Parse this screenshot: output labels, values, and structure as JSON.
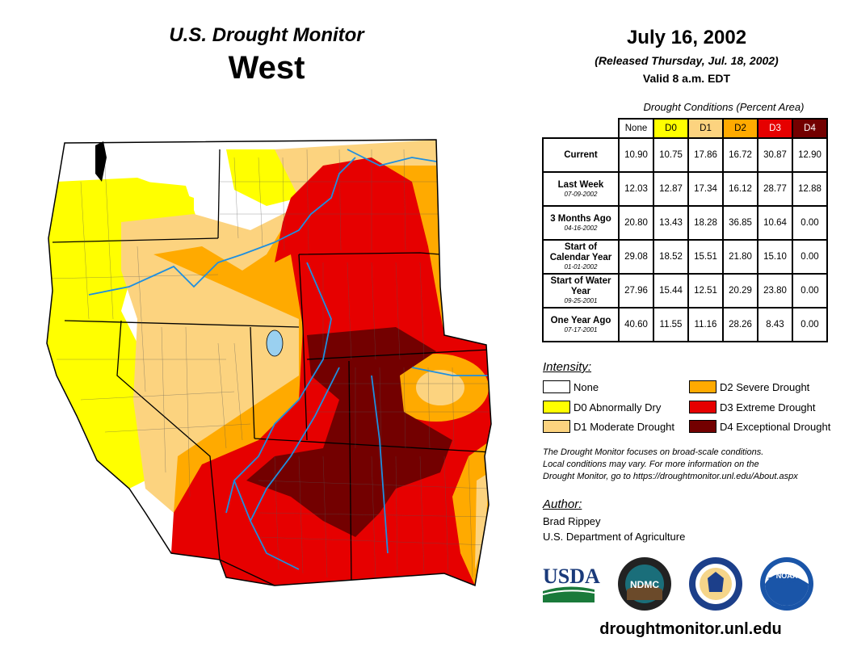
{
  "header": {
    "title": "U.S. Drought Monitor",
    "region": "West",
    "date": "July 16, 2002",
    "released": "(Released Thursday, Jul. 18, 2002)",
    "valid": "Valid 8 a.m. EDT"
  },
  "table": {
    "caption": "Drought Conditions (Percent Area)",
    "columns": [
      "None",
      "D0",
      "D1",
      "D2",
      "D3",
      "D4"
    ],
    "column_colors": [
      "#ffffff",
      "#ffff00",
      "#fcd37f",
      "#ffaa00",
      "#e60000",
      "#730000"
    ],
    "rows": [
      {
        "label": "Current",
        "sublabel": "",
        "values": [
          "10.90",
          "10.75",
          "17.86",
          "16.72",
          "30.87",
          "12.90"
        ]
      },
      {
        "label": "Last Week",
        "sublabel": "07-09-2002",
        "values": [
          "12.03",
          "12.87",
          "17.34",
          "16.12",
          "28.77",
          "12.88"
        ]
      },
      {
        "label": "3 Months Ago",
        "sublabel": "04-16-2002",
        "values": [
          "20.80",
          "13.43",
          "18.28",
          "36.85",
          "10.64",
          "0.00"
        ]
      },
      {
        "label": "Start of Calendar Year",
        "sublabel": "01-01-2002",
        "values": [
          "29.08",
          "18.52",
          "15.51",
          "21.80",
          "15.10",
          "0.00"
        ]
      },
      {
        "label": "Start of Water Year",
        "sublabel": "09-25-2001",
        "values": [
          "27.96",
          "15.44",
          "12.51",
          "20.29",
          "23.80",
          "0.00"
        ]
      },
      {
        "label": "One Year Ago",
        "sublabel": "07-17-2001",
        "values": [
          "40.60",
          "11.55",
          "11.16",
          "28.26",
          "8.43",
          "0.00"
        ]
      }
    ]
  },
  "legend": {
    "title": "Intensity:",
    "items": [
      {
        "label": "None",
        "color": "#ffffff"
      },
      {
        "label": "D0 Abnormally Dry",
        "color": "#ffff00"
      },
      {
        "label": "D1 Moderate Drought",
        "color": "#fcd37f"
      },
      {
        "label": "D2 Severe Drought",
        "color": "#ffaa00"
      },
      {
        "label": "D3 Extreme Drought",
        "color": "#e60000"
      },
      {
        "label": "D4 Exceptional Drought",
        "color": "#730000"
      }
    ]
  },
  "note": {
    "line1": "The Drought Monitor focuses on broad-scale conditions.",
    "line2": "Local conditions may vary. For more information on the",
    "line3": "Drought Monitor, go to https://droughtmonitor.unl.edu/About.aspx"
  },
  "author": {
    "title": "Author:",
    "name": "Brad Rippey",
    "org": "U.S. Department of Agriculture"
  },
  "logos": {
    "usda": "USDA",
    "ndmc": "NDMC",
    "noaa": "NOAA"
  },
  "url": "droughtmonitor.unl.edu"
}
